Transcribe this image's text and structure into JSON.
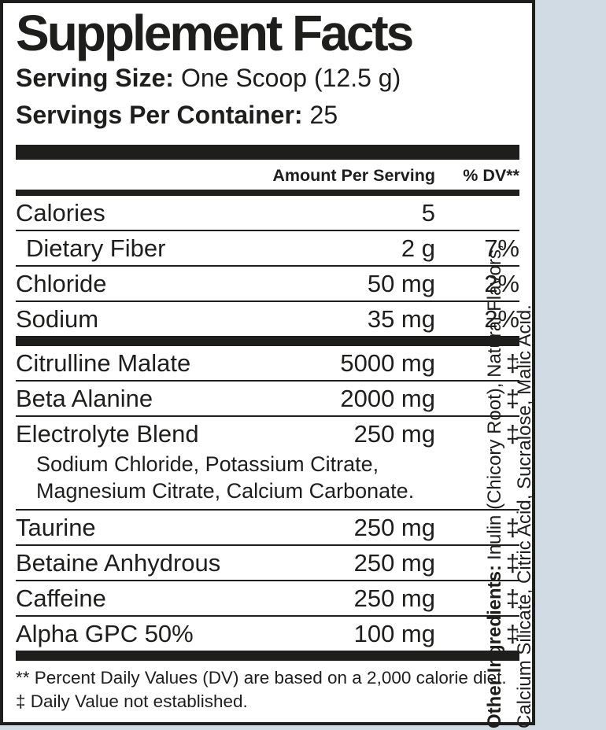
{
  "label": {
    "title": "Supplement Facts",
    "serving_size_label": "Serving Size:",
    "serving_size_value": "One Scoop (12.5 g)",
    "servings_label": "Servings Per Container:",
    "servings_value": "25",
    "header": {
      "amount": "Amount Per Serving",
      "dv": "% DV**"
    },
    "nutrients": [
      {
        "name": "Calories",
        "amount": "5",
        "dv": "",
        "indent": false
      },
      {
        "name": "Dietary Fiber",
        "amount": "2 g",
        "dv": "7%",
        "indent": true
      },
      {
        "name": "Chloride",
        "amount": "50 mg",
        "dv": "2%",
        "indent": false
      },
      {
        "name": "Sodium",
        "amount": "35 mg",
        "dv": "2%",
        "indent": false
      }
    ],
    "ingredients": [
      {
        "name": "Citrulline Malate",
        "amount": "5000 mg",
        "dv": "‡"
      },
      {
        "name": "Beta Alanine",
        "amount": "2000 mg",
        "dv": "‡"
      },
      {
        "name": "Electrolyte Blend",
        "amount": "250 mg",
        "dv": "‡",
        "sub": [
          "Sodium Chloride, Potassium Citrate,",
          "Magnesium Citrate, Calcium Carbonate."
        ]
      },
      {
        "name": "Taurine",
        "amount": "250 mg",
        "dv": "‡"
      },
      {
        "name": "Betaine Anhydrous",
        "amount": "250 mg",
        "dv": "‡"
      },
      {
        "name": "Caffeine",
        "amount": "250 mg",
        "dv": "‡"
      },
      {
        "name": "Alpha GPC 50%",
        "amount": "100 mg",
        "dv": "‡"
      }
    ],
    "footnotes": [
      "** Percent Daily Values (DV) are based on a 2,000 calorie diet.",
      "‡ Daily Value not established."
    ],
    "other_ingredients_label": "Other Ingredients:",
    "other_ingredients_line1_rest": "Inulin (Chicory Root), Natural Flavors,",
    "other_ingredients_line2": "Calcium Silicate, Citric Acid, Sucralose, Malic Acid.",
    "colors": {
      "background": "#d0dbe3",
      "panel": "#ffffff",
      "ink": "#1e1e1c"
    }
  }
}
